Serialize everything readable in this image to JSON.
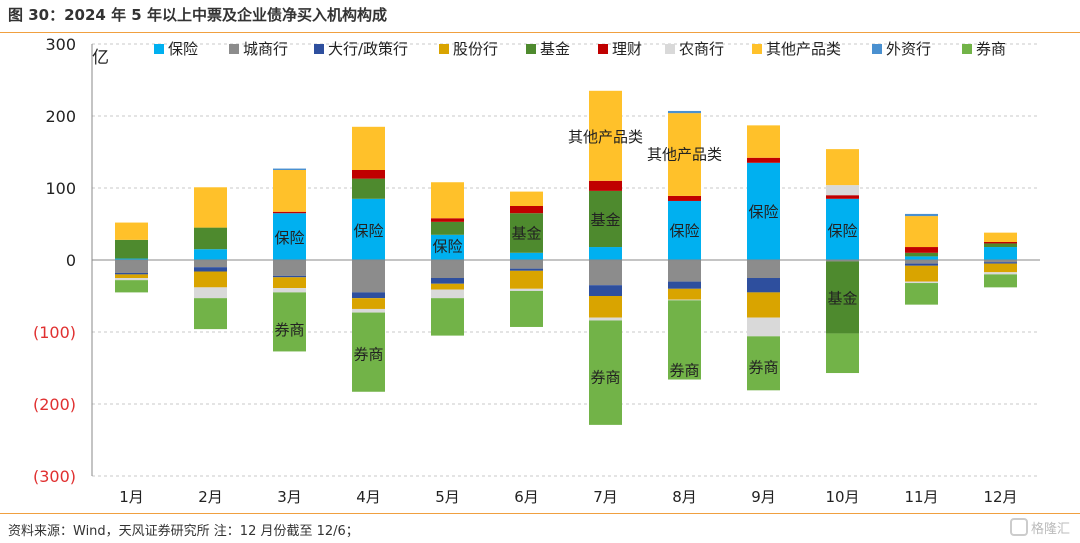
{
  "title": "图 30：2024 年 5 年以上中票及企业债净买入机构构成",
  "source": "资料来源：Wind，天风证券研究所     注：12 月份截至 12/6；",
  "watermark": "格隆汇",
  "chart_data": {
    "type": "bar",
    "stacked": true,
    "unit_label": "亿",
    "ylim": [
      -300,
      300
    ],
    "yticks": [
      300,
      200,
      100,
      0,
      -100,
      -200,
      -300
    ],
    "ytick_labels": [
      "300",
      "200",
      "100",
      "0",
      "(100)",
      "(200)",
      "(300)"
    ],
    "negative_tick_color": "#e03030",
    "grid": true,
    "legend_position": "top",
    "categories": [
      "1月",
      "2月",
      "3月",
      "4月",
      "5月",
      "6月",
      "7月",
      "8月",
      "9月",
      "10月",
      "11月",
      "12月"
    ],
    "series": [
      {
        "name": "保险",
        "color": "#00b0f0",
        "values": [
          2,
          15,
          65,
          85,
          35,
          10,
          18,
          82,
          135,
          85,
          5,
          18
        ]
      },
      {
        "name": "城商行",
        "color": "#8c8c8c",
        "values": [
          -18,
          -10,
          -22,
          -45,
          -25,
          -12,
          -35,
          -30,
          -25,
          -2,
          -5,
          -3
        ]
      },
      {
        "name": "大行/政策行",
        "color": "#2e4f9e",
        "values": [
          -2,
          -6,
          -2,
          -8,
          -8,
          -3,
          -15,
          -10,
          -20,
          0,
          -3,
          -2
        ]
      },
      {
        "name": "股份行",
        "color": "#d9a400",
        "values": [
          -5,
          -22,
          -15,
          -15,
          -8,
          -25,
          -30,
          -15,
          -35,
          0,
          -22,
          -12
        ]
      },
      {
        "name": "基金",
        "color": "#4e8a2e",
        "values": [
          26,
          30,
          0,
          28,
          18,
          55,
          78,
          0,
          0,
          -100,
          5,
          5
        ]
      },
      {
        "name": "理财",
        "color": "#c00000",
        "values": [
          0,
          0,
          2,
          12,
          5,
          10,
          14,
          7,
          7,
          5,
          8,
          2
        ]
      },
      {
        "name": "农商行",
        "color": "#d9d9d9",
        "values": [
          -3,
          -15,
          -6,
          -5,
          -12,
          -3,
          -4,
          -1,
          -26,
          14,
          -2,
          -3
        ]
      },
      {
        "name": "其他产品类",
        "color": "#ffc12a",
        "values": [
          24,
          56,
          58,
          60,
          50,
          20,
          125,
          115,
          45,
          50,
          43,
          13
        ]
      },
      {
        "name": "外资行",
        "color": "#4a90d0",
        "values": [
          0,
          0,
          2,
          0,
          0,
          0,
          0,
          3,
          0,
          0,
          3,
          0
        ]
      },
      {
        "name": "券商",
        "color": "#72b348",
        "values": [
          -17,
          -43,
          -82,
          -110,
          -52,
          -50,
          -145,
          -110,
          -75,
          -55,
          -30,
          -18
        ]
      }
    ],
    "annotations": [
      {
        "month": "3月",
        "text": "保险",
        "value": 32
      },
      {
        "month": "4月",
        "text": "保险",
        "value": 42
      },
      {
        "month": "5月",
        "text": "保险",
        "value": 20
      },
      {
        "month": "6月",
        "text": "基金",
        "value": 38
      },
      {
        "month": "7月",
        "text": "基金",
        "value": 57
      },
      {
        "month": "7月",
        "text": "其他产品类",
        "value": 172
      },
      {
        "month": "8月",
        "text": "保险",
        "value": 42
      },
      {
        "month": "8月",
        "text": "其他产品类",
        "value": 148
      },
      {
        "month": "9月",
        "text": "保险",
        "value": 68
      },
      {
        "month": "10月",
        "text": "保险",
        "value": 42
      },
      {
        "month": "10月",
        "text": "基金",
        "value": -52
      },
      {
        "month": "3月",
        "text": "券商",
        "value": -96
      },
      {
        "month": "4月",
        "text": "券商",
        "value": -130
      },
      {
        "month": "7月",
        "text": "券商",
        "value": -162
      },
      {
        "month": "8月",
        "text": "券商",
        "value": -152
      },
      {
        "month": "9月",
        "text": "券商",
        "value": -148
      }
    ]
  }
}
